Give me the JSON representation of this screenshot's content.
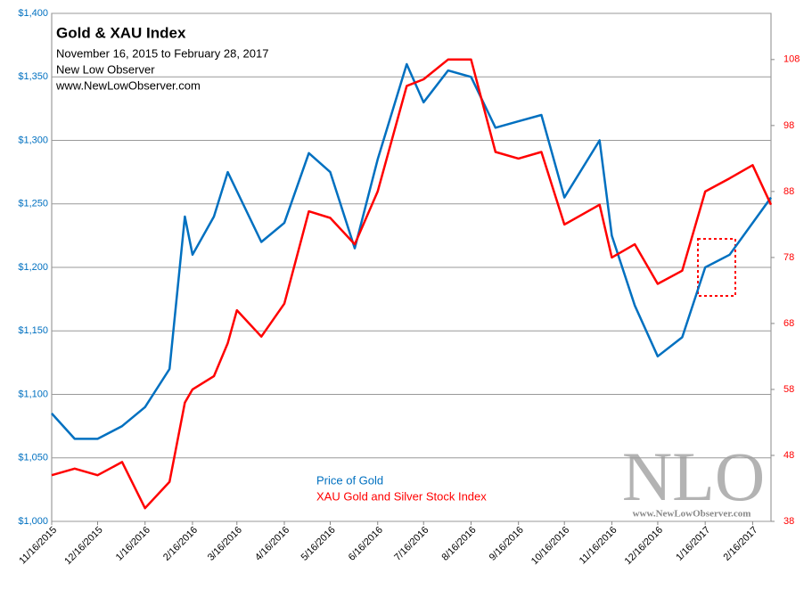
{
  "chart_data": {
    "type": "line",
    "title": "Gold  & XAU Index",
    "subtitle": "November 16, 2015  to February 28, 2017",
    "annotations": [
      "New Low Observer",
      "www.NewLowObserver.com"
    ],
    "watermark": [
      "NLO",
      "www.NewLowObserver.com"
    ],
    "x": [
      "11/16/2015",
      "12/1/2015",
      "12/16/2015",
      "1/1/2016",
      "1/16/2016",
      "2/1/2016",
      "2/11/2016",
      "2/16/2016",
      "3/1/2016",
      "3/10/2016",
      "3/16/2016",
      "4/1/2016",
      "4/16/2016",
      "5/2/2016",
      "5/16/2016",
      "6/1/2016",
      "6/16/2016",
      "7/5/2016",
      "7/16/2016",
      "8/1/2016",
      "8/16/2016",
      "9/1/2016",
      "9/16/2016",
      "10/1/2016",
      "10/16/2016",
      "11/8/2016",
      "11/16/2016",
      "12/1/2016",
      "12/16/2016",
      "1/1/2017",
      "1/16/2017",
      "2/1/2017",
      "2/16/2017",
      "2/28/2017"
    ],
    "xlim": [
      "11/16/2015",
      "2/28/2017"
    ],
    "xticks": [
      "11/16/2015",
      "12/16/2015",
      "1/16/2016",
      "2/16/2016",
      "3/16/2016",
      "4/16/2016",
      "5/16/2016",
      "6/16/2016",
      "7/16/2016",
      "8/16/2016",
      "9/16/2016",
      "10/16/2016",
      "11/16/2016",
      "12/16/2016",
      "1/16/2017",
      "2/16/2017"
    ],
    "ylim": [
      1000,
      1400
    ],
    "yticks": [
      {
        "value": 1000,
        "label": "$1,000"
      },
      {
        "value": 1050,
        "label": "$1,050"
      },
      {
        "value": 1100,
        "label": "$1,100"
      },
      {
        "value": 1150,
        "label": "$1,150"
      },
      {
        "value": 1200,
        "label": "$1,200"
      },
      {
        "value": 1250,
        "label": "$1,250"
      },
      {
        "value": 1300,
        "label": "$1,300"
      },
      {
        "value": 1350,
        "label": "$1,350"
      },
      {
        "value": 1400,
        "label": "$1,400"
      }
    ],
    "y2lim": [
      38,
      115
    ],
    "y2ticks": [
      38,
      48,
      58,
      68,
      78,
      88,
      98,
      108
    ],
    "grid": true,
    "series": [
      {
        "name": "Price of Gold",
        "color": "#0070c0",
        "axis": "y",
        "values": [
          1085,
          1065,
          1065,
          1075,
          1090,
          1120,
          1240,
          1210,
          1240,
          1275,
          1260,
          1220,
          1235,
          1290,
          1275,
          1215,
          1285,
          1360,
          1330,
          1355,
          1350,
          1310,
          1315,
          1320,
          1255,
          1300,
          1225,
          1170,
          1130,
          1145,
          1200,
          1210,
          1235,
          1255
        ]
      },
      {
        "name": "XAU Gold and Silver Stock Index",
        "color": "#ff0000",
        "axis": "y2",
        "values": [
          45,
          46,
          45,
          47,
          40,
          44,
          56,
          58,
          60,
          65,
          70,
          66,
          71,
          85,
          84,
          80,
          88,
          104,
          105,
          108,
          108,
          94,
          93,
          94,
          83,
          86,
          78,
          80,
          74,
          76,
          88,
          90,
          92,
          86
        ]
      }
    ]
  }
}
